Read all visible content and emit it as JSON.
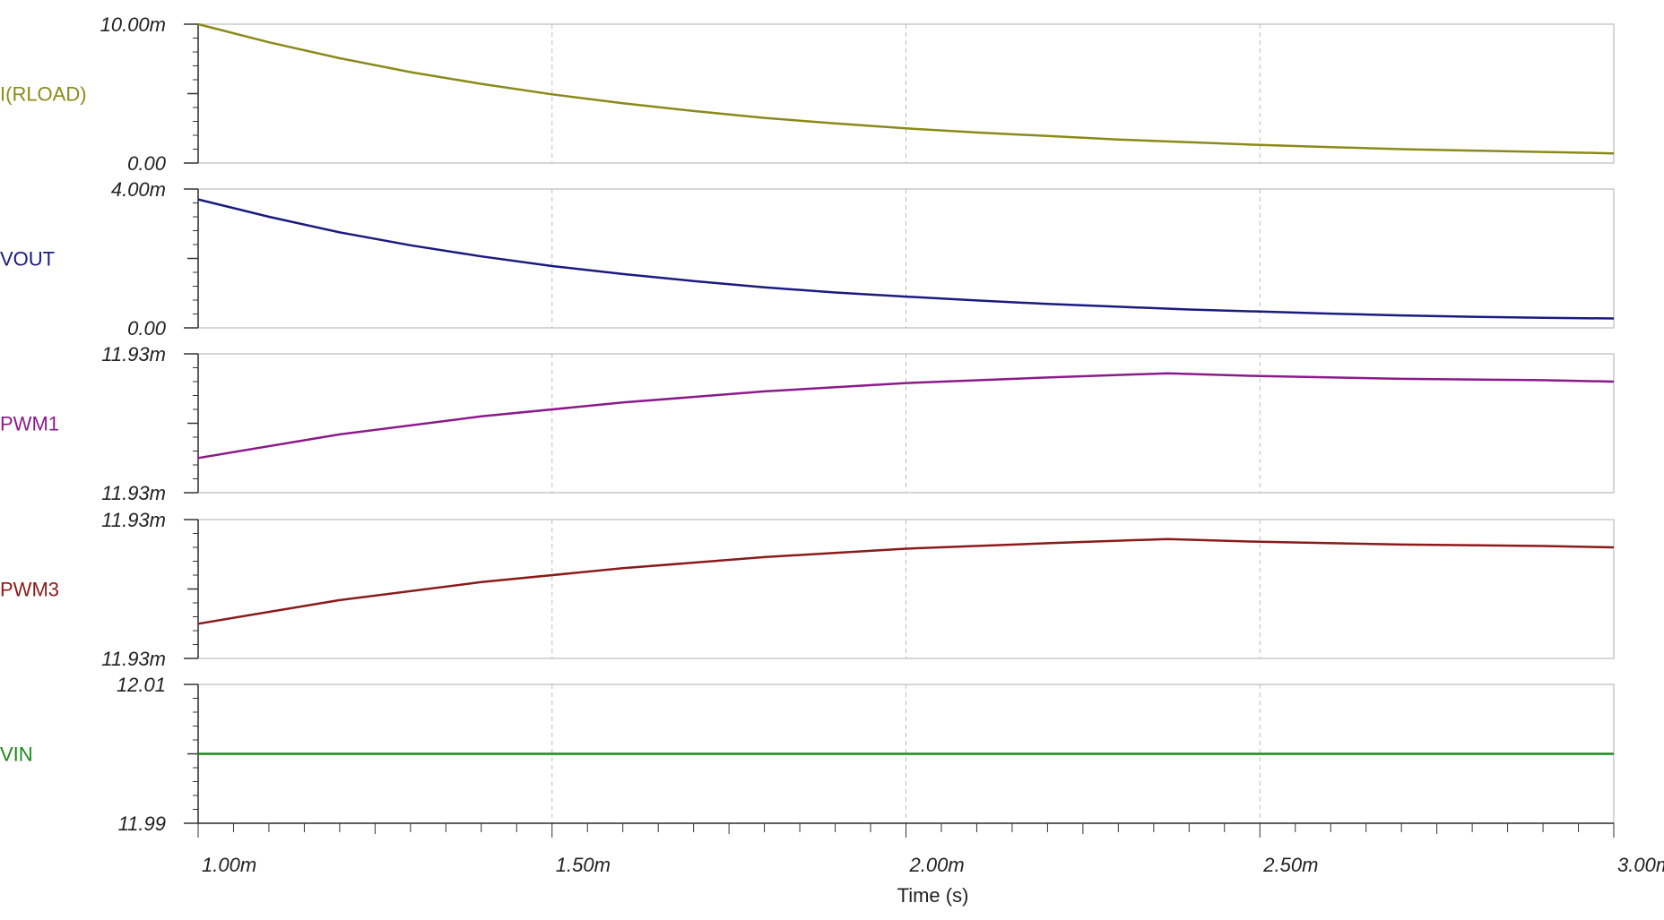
{
  "chart_data": {
    "type": "line",
    "x_ticks": [
      {
        "value": 1.0,
        "label": "1.00m"
      },
      {
        "value": 1.5,
        "label": "1.50m"
      },
      {
        "value": 2.0,
        "label": "2.00m"
      },
      {
        "value": 2.5,
        "label": "2.50m"
      },
      {
        "value": 3.0,
        "label": "3.00m"
      }
    ],
    "xlim": [
      1.0,
      3.0
    ],
    "xlabel": "Time (s)",
    "x_unit_note": "x values in ms",
    "grid": "vertical-dashed",
    "panels": [
      {
        "name": "I(RLOAD)",
        "color": "#8a8a1a",
        "ylim": [
          0,
          10
        ],
        "y_top_label": "10.00m",
        "y_bottom_label": "0.00",
        "x": [
          1.0,
          1.1,
          1.2,
          1.3,
          1.4,
          1.5,
          1.6,
          1.7,
          1.8,
          1.9,
          2.0,
          2.1,
          2.2,
          2.3,
          2.4,
          2.5,
          2.6,
          2.7,
          2.8,
          2.9,
          3.0
        ],
        "y": [
          10.0,
          8.7,
          7.55,
          6.55,
          5.7,
          4.95,
          4.3,
          3.75,
          3.25,
          2.85,
          2.5,
          2.2,
          1.95,
          1.7,
          1.5,
          1.3,
          1.15,
          1.0,
          0.9,
          0.8,
          0.7
        ]
      },
      {
        "name": "VOUT",
        "color": "#1a1a80",
        "ylim": [
          0,
          4
        ],
        "y_top_label": "4.00m",
        "y_bottom_label": "0.00",
        "x": [
          1.0,
          1.1,
          1.2,
          1.3,
          1.4,
          1.5,
          1.6,
          1.7,
          1.8,
          1.9,
          2.0,
          2.1,
          2.2,
          2.3,
          2.4,
          2.5,
          2.6,
          2.7,
          2.8,
          2.9,
          3.0
        ],
        "y": [
          3.7,
          3.2,
          2.75,
          2.38,
          2.06,
          1.78,
          1.55,
          1.35,
          1.17,
          1.02,
          0.9,
          0.79,
          0.69,
          0.61,
          0.53,
          0.47,
          0.41,
          0.36,
          0.32,
          0.29,
          0.27
        ]
      },
      {
        "name": "PWM1",
        "color": "#8b1a8b",
        "ylim": [
          0,
          1
        ],
        "y_top_label": "11.93m",
        "y_bottom_label": "11.93m",
        "x": [
          1.0,
          1.2,
          1.4,
          1.6,
          1.8,
          2.0,
          2.2,
          2.37,
          2.5,
          2.7,
          2.9,
          3.0
        ],
        "y": [
          0.25,
          0.42,
          0.55,
          0.65,
          0.73,
          0.79,
          0.83,
          0.86,
          0.84,
          0.82,
          0.81,
          0.8
        ]
      },
      {
        "name": "PWM3",
        "color": "#8b1a1a",
        "ylim": [
          0,
          1
        ],
        "y_top_label": "11.93m",
        "y_bottom_label": "11.93m",
        "x": [
          1.0,
          1.2,
          1.4,
          1.6,
          1.8,
          2.0,
          2.2,
          2.37,
          2.5,
          2.7,
          2.9,
          3.0
        ],
        "y": [
          0.25,
          0.42,
          0.55,
          0.65,
          0.73,
          0.79,
          0.83,
          0.86,
          0.84,
          0.82,
          0.81,
          0.8
        ]
      },
      {
        "name": "VIN",
        "color": "#1a8a1a",
        "ylim": [
          11.99,
          12.01
        ],
        "y_top_label": "12.01",
        "y_bottom_label": "11.99",
        "x": [
          1.0,
          3.0
        ],
        "y": [
          12.0,
          12.0
        ]
      }
    ]
  }
}
